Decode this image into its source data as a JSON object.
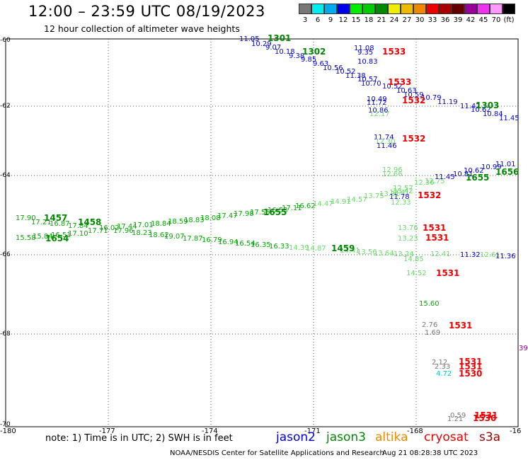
{
  "header": {
    "title": "12:00 – 23:59 UTC 08/19/2023",
    "subtitle": "12 hour collection of altimeter wave heights"
  },
  "colorbar": {
    "colors": [
      "#777777",
      "#00eeee",
      "#00aaee",
      "#0000ee",
      "#00ee00",
      "#00cc00",
      "#008800",
      "#eeee00",
      "#eebb00",
      "#ee8800",
      "#ee0000",
      "#aa0000",
      "#660000",
      "#990099",
      "#ee33ee",
      "#ff99ff",
      "#000000"
    ],
    "labels": [
      "3",
      "6",
      "9",
      "12",
      "15",
      "18",
      "21",
      "24",
      "27",
      "30",
      "33",
      "36",
      "39",
      "42",
      "45",
      "70",
      "(ft)"
    ]
  },
  "axes": {
    "y_labels": [
      "-60",
      "-62",
      "-64",
      "-66",
      "-68",
      "-70"
    ],
    "x_labels": [
      "-180",
      "-177",
      "-174",
      "-171",
      "-168",
      "-16"
    ]
  },
  "note": "note: 1) Time is in UTC; 2) SWH is in feet",
  "satellites": [
    {
      "name": "jason2",
      "color": "#0000dd"
    },
    {
      "name": "jason3",
      "color": "#008800"
    },
    {
      "name": "altika",
      "color": "#ee8800"
    },
    {
      "name": "cryosat",
      "color": "#ee0000"
    },
    {
      "name": "s3a",
      "color": "#990000"
    }
  ],
  "footer": {
    "center": "NOAA/NESDIS Center for Satellite Applications and Research",
    "timestamp": "Aug 21 08:28:38 UTC 2023"
  },
  "pass_labels": [
    {
      "text": "1301",
      "color": "#008800"
    },
    {
      "text": "1302",
      "color": "#008800"
    },
    {
      "text": "1533",
      "color": "#ee0000"
    },
    {
      "text": "1533",
      "color": "#ee0000"
    },
    {
      "text": "1532",
      "color": "#ee0000"
    },
    {
      "text": "1303",
      "color": "#008800"
    },
    {
      "text": "1532",
      "color": "#ee0000"
    },
    {
      "text": "1656",
      "color": "#008800"
    },
    {
      "text": "1655",
      "color": "#008800"
    },
    {
      "text": "1532",
      "color": "#ee0000"
    },
    {
      "text": "1457",
      "color": "#008800"
    },
    {
      "text": "1458",
      "color": "#008800"
    },
    {
      "text": "1655",
      "color": "#008800"
    },
    {
      "text": "1654",
      "color": "#008800"
    },
    {
      "text": "1531",
      "color": "#ee0000"
    },
    {
      "text": "1531",
      "color": "#ee0000"
    },
    {
      "text": "1459",
      "color": "#008800"
    },
    {
      "text": "1531",
      "color": "#ee0000"
    },
    {
      "text": "1531",
      "color": "#ee0000"
    },
    {
      "text": "1531",
      "color": "#ee0000"
    },
    {
      "text": "1531",
      "color": "#ee0000"
    },
    {
      "text": "1530",
      "color": "#ee0000"
    },
    {
      "text": "1531",
      "color": "#ee0000"
    },
    {
      "text": "1530",
      "color": "#ee0000"
    }
  ],
  "values": [
    {
      "text": "11.05",
      "color": "#0000dd"
    },
    {
      "text": "10.29",
      "color": "#0000dd"
    },
    {
      "text": "9.07",
      "color": "#0000dd"
    },
    {
      "text": "10.18",
      "color": "#0000dd"
    },
    {
      "text": "9.38",
      "color": "#0000dd"
    },
    {
      "text": "9.85",
      "color": "#0000dd"
    },
    {
      "text": "9.63",
      "color": "#0000dd"
    },
    {
      "text": "10.56",
      "color": "#0000dd"
    },
    {
      "text": "10.52",
      "color": "#0000dd"
    },
    {
      "text": "11.38",
      "color": "#0000dd"
    },
    {
      "text": "11.08",
      "color": "#0000dd"
    },
    {
      "text": "9.35",
      "color": "#0000dd"
    },
    {
      "text": "10.83",
      "color": "#0000dd"
    },
    {
      "text": "10.57",
      "color": "#0000dd"
    },
    {
      "text": "10.70",
      "color": "#0000dd"
    },
    {
      "text": "10.52",
      "color": "#0000dd"
    },
    {
      "text": "10.63",
      "color": "#0000dd"
    },
    {
      "text": "10.59",
      "color": "#0000dd"
    },
    {
      "text": "10.79",
      "color": "#0000dd"
    },
    {
      "text": "10.49",
      "color": "#0000dd"
    },
    {
      "text": "11.72",
      "color": "#0000dd"
    },
    {
      "text": "10.86",
      "color": "#0000dd"
    },
    {
      "text": "12.17",
      "color": "#66dd66"
    },
    {
      "text": "11.19",
      "color": "#0000dd"
    },
    {
      "text": "11.42",
      "color": "#0000dd"
    },
    {
      "text": "10.62",
      "color": "#0000dd"
    },
    {
      "text": "10.84",
      "color": "#0000dd"
    },
    {
      "text": "11.45",
      "color": "#0000dd"
    },
    {
      "text": "11.74",
      "color": "#0000dd"
    },
    {
      "text": "12.30",
      "color": "#66dd66"
    },
    {
      "text": "11.46",
      "color": "#0000dd"
    },
    {
      "text": "12.96",
      "color": "#66dd66"
    },
    {
      "text": "12.66",
      "color": "#66dd66"
    },
    {
      "text": "12.36",
      "color": "#66dd66"
    },
    {
      "text": "12.75",
      "color": "#66dd66"
    },
    {
      "text": "11.45",
      "color": "#0000dd"
    },
    {
      "text": "10.81",
      "color": "#0000dd"
    },
    {
      "text": "10.62",
      "color": "#0000dd"
    },
    {
      "text": "10.99",
      "color": "#0000dd"
    },
    {
      "text": "11.01",
      "color": "#0000dd"
    },
    {
      "text": "12.57",
      "color": "#66dd66"
    },
    {
      "text": "12.41",
      "color": "#66dd66"
    },
    {
      "text": "11.78",
      "color": "#0000dd"
    },
    {
      "text": "12.33",
      "color": "#66dd66"
    },
    {
      "text": "17.90",
      "color": "#00aa00"
    },
    {
      "text": "17.21",
      "color": "#00aa00"
    },
    {
      "text": "16.87",
      "color": "#00aa00"
    },
    {
      "text": "17.84",
      "color": "#00aa00"
    },
    {
      "text": "16.02",
      "color": "#00aa00"
    },
    {
      "text": "17.44",
      "color": "#00aa00"
    },
    {
      "text": "17.01",
      "color": "#00aa00"
    },
    {
      "text": "18.84",
      "color": "#00aa00"
    },
    {
      "text": "18.59",
      "color": "#00aa00"
    },
    {
      "text": "18.83",
      "color": "#00aa00"
    },
    {
      "text": "18.08",
      "color": "#00aa00"
    },
    {
      "text": "17.47",
      "color": "#00aa00"
    },
    {
      "text": "17.98",
      "color": "#00aa00"
    },
    {
      "text": "17.55",
      "color": "#00aa00"
    },
    {
      "text": "16.53",
      "color": "#00aa00"
    },
    {
      "text": "17.11",
      "color": "#00aa00"
    },
    {
      "text": "16.62",
      "color": "#00aa00"
    },
    {
      "text": "14.47",
      "color": "#66dd66"
    },
    {
      "text": "14.91",
      "color": "#66dd66"
    },
    {
      "text": "14.57",
      "color": "#66dd66"
    },
    {
      "text": "13.75",
      "color": "#66dd66"
    },
    {
      "text": "13.31",
      "color": "#66dd66"
    },
    {
      "text": "13.42",
      "color": "#66dd66"
    },
    {
      "text": "15.58",
      "color": "#00aa00"
    },
    {
      "text": "15.84",
      "color": "#00aa00"
    },
    {
      "text": "16.51",
      "color": "#00aa00"
    },
    {
      "text": "17.10",
      "color": "#00aa00"
    },
    {
      "text": "17.71",
      "color": "#00aa00"
    },
    {
      "text": "17.96",
      "color": "#00aa00"
    },
    {
      "text": "18.23",
      "color": "#00aa00"
    },
    {
      "text": "18.62",
      "color": "#00aa00"
    },
    {
      "text": "19.07",
      "color": "#00aa00"
    },
    {
      "text": "17.87",
      "color": "#00aa00"
    },
    {
      "text": "16.79",
      "color": "#00aa00"
    },
    {
      "text": "16.94",
      "color": "#00aa00"
    },
    {
      "text": "16.54",
      "color": "#00aa00"
    },
    {
      "text": "16.35",
      "color": "#00aa00"
    },
    {
      "text": "16.33",
      "color": "#00aa00"
    },
    {
      "text": "14.39",
      "color": "#66dd66"
    },
    {
      "text": "14.87",
      "color": "#66dd66"
    },
    {
      "text": "14.41",
      "color": "#66dd66"
    },
    {
      "text": "13.56",
      "color": "#66dd66"
    },
    {
      "text": "13.64",
      "color": "#66dd66"
    },
    {
      "text": "13.76",
      "color": "#66dd66"
    },
    {
      "text": "13.23",
      "color": "#66dd66"
    },
    {
      "text": "13.24",
      "color": "#66dd66"
    },
    {
      "text": "12.41",
      "color": "#66dd66"
    },
    {
      "text": "11.32",
      "color": "#0000dd"
    },
    {
      "text": "12.61",
      "color": "#66dd66"
    },
    {
      "text": "11.36",
      "color": "#0000dd"
    },
    {
      "text": "14.85",
      "color": "#66dd66"
    },
    {
      "text": "14.52",
      "color": "#66dd66"
    },
    {
      "text": "15.60",
      "color": "#00aa00"
    },
    {
      "text": "2.76",
      "color": "#777777"
    },
    {
      "text": "1.69",
      "color": "#777777"
    },
    {
      "text": "2.12",
      "color": "#777777"
    },
    {
      "text": "2.33",
      "color": "#777777"
    },
    {
      "text": "4.72",
      "color": "#00cccc"
    },
    {
      "text": "0.59",
      "color": "#777777"
    },
    {
      "text": "1.21",
      "color": "#777777"
    },
    {
      "text": "39",
      "color": "#990099"
    }
  ]
}
